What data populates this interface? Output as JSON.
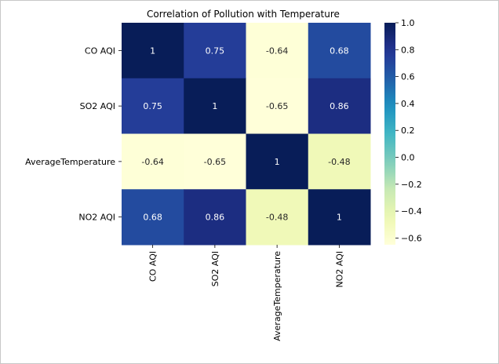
{
  "chart_data": {
    "type": "heatmap",
    "title": "Correlation of Pollution with Temperature",
    "x_labels": [
      "CO AQI",
      "SO2 AQI",
      "AverageTemperature",
      "NO2 AQI"
    ],
    "y_labels": [
      "CO AQI",
      "SO2 AQI",
      "AverageTemperature",
      "NO2 AQI"
    ],
    "values": [
      [
        1,
        0.75,
        -0.64,
        0.68
      ],
      [
        0.75,
        1,
        -0.65,
        0.86
      ],
      [
        -0.64,
        -0.65,
        1,
        -0.48
      ],
      [
        0.68,
        0.86,
        -0.48,
        1
      ]
    ],
    "cell_labels": [
      [
        "1",
        "0.75",
        "-0.64",
        "0.68"
      ],
      [
        "0.75",
        "1",
        "-0.65",
        "0.86"
      ],
      [
        "-0.64",
        "-0.65",
        "1",
        "-0.48"
      ],
      [
        "0.68",
        "0.86",
        "-0.48",
        "1"
      ]
    ],
    "colormap": "YlGnBu",
    "vmin": -0.65,
    "vmax": 1.0,
    "colorbar_ticks": [
      1.0,
      0.8,
      0.6,
      0.4,
      0.2,
      0.0,
      -0.2,
      -0.4,
      -0.6
    ],
    "colorbar_tick_labels": [
      "1.0",
      "0.8",
      "0.6",
      "0.4",
      "0.2",
      "0.0",
      "−0.2",
      "−0.4",
      "−0.6"
    ]
  }
}
